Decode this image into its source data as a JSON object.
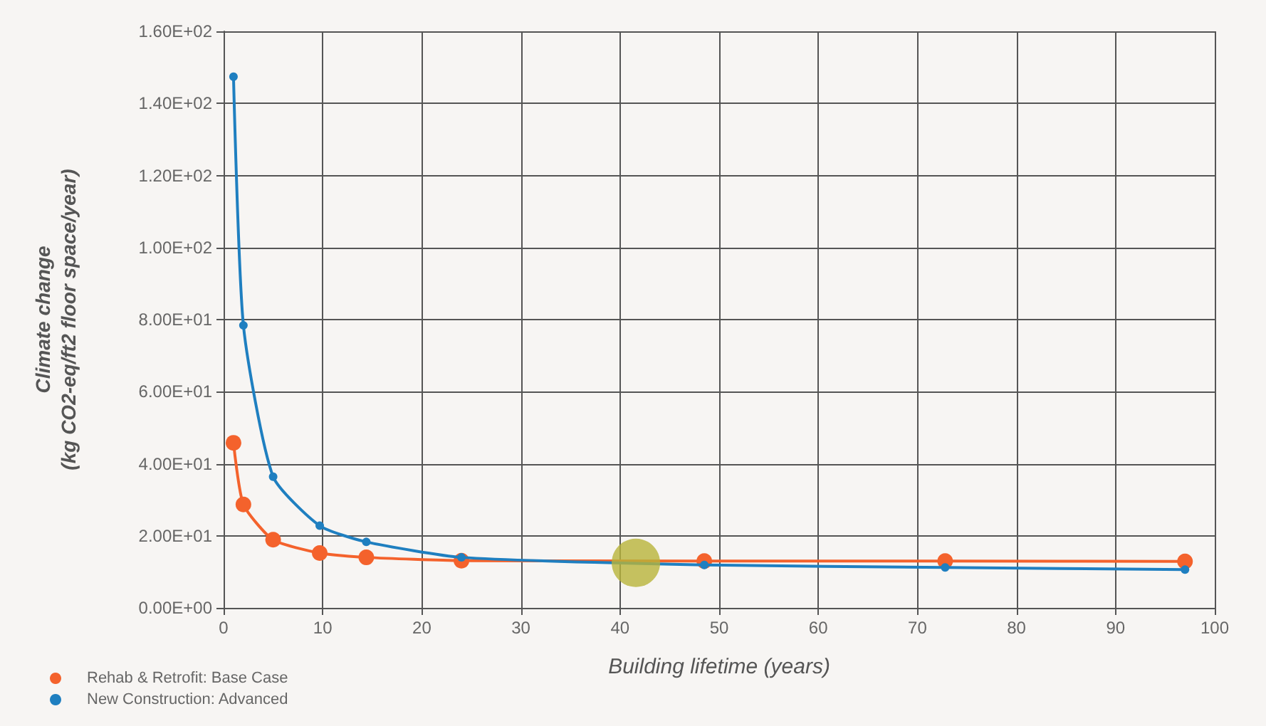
{
  "chart_data": {
    "type": "line",
    "xlabel": "Building lifetime (years)",
    "ylabel": "Climate change\n(kg CO2-eq/ft2 floor space/year)",
    "xlim": [
      0,
      100
    ],
    "xticks": [
      0,
      10,
      20,
      30,
      40,
      50,
      60,
      70,
      80,
      90,
      100
    ],
    "ylim": [
      0,
      160
    ],
    "yticks": [
      {
        "value": 0,
        "label": "0.00E+00"
      },
      {
        "value": 20,
        "label": "2.00E+01"
      },
      {
        "value": 40,
        "label": "4.00E+01"
      },
      {
        "value": 60,
        "label": "6.00E+01"
      },
      {
        "value": 80,
        "label": "8.00E+01"
      },
      {
        "value": 100,
        "label": "1.00E+02"
      },
      {
        "value": 120,
        "label": "1.20E+02"
      },
      {
        "value": 140,
        "label": "1.40E+02"
      },
      {
        "value": 160,
        "label": "1.60E+02"
      }
    ],
    "grid": true,
    "legend": "bottom left",
    "marker": "circle",
    "line_style": "solid",
    "series": [
      {
        "name": "Rehab & Retrofit: Base Case",
        "color": "#f4622c",
        "x": [
          1,
          2,
          5,
          9.7,
          14.4,
          24,
          48.5,
          72.8,
          97
        ],
        "values": [
          45.8,
          28.7,
          18.9,
          15.2,
          14,
          13.1,
          13,
          13,
          12.9
        ]
      },
      {
        "name": "New Construction: Advanced",
        "color": "#1f7fc0",
        "x": [
          1,
          2,
          5,
          9.7,
          14.4,
          24,
          48.5,
          72.8,
          97
        ],
        "values": [
          147.4,
          78.4,
          36.4,
          22.8,
          18.3,
          14,
          11.9,
          11.2,
          10.6
        ]
      },
      {
        "type": "scatter",
        "color": "#b8b43a",
        "x": [
          41.6
        ],
        "values": [
          12.5
        ]
      }
    ]
  }
}
